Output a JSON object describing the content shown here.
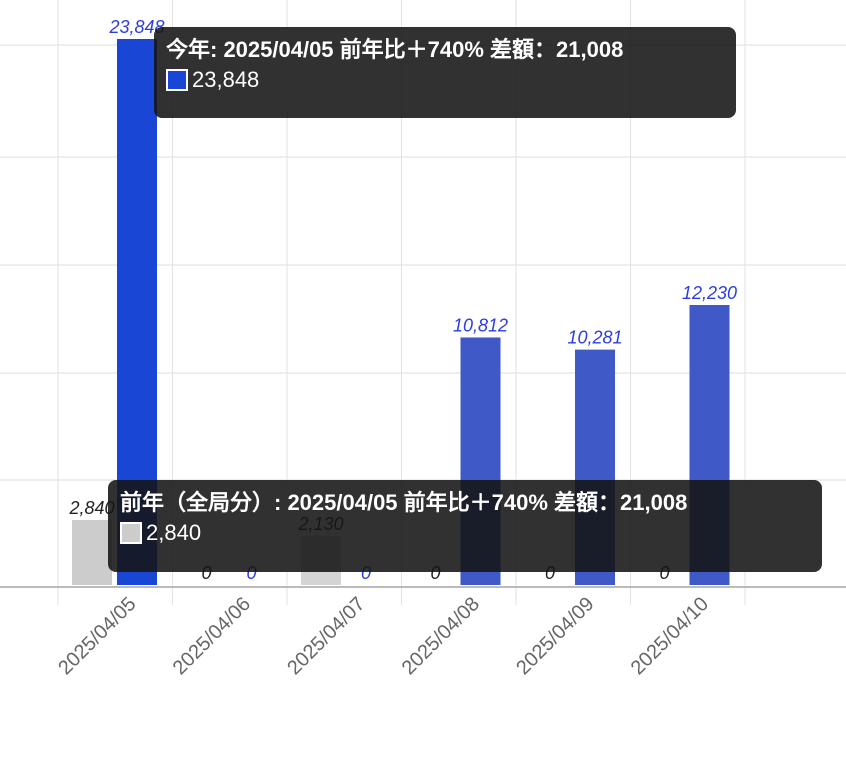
{
  "chart_data": {
    "type": "bar",
    "categories": [
      "2025/04/05",
      "2025/04/06",
      "2025/04/07",
      "2025/04/08",
      "2025/04/09",
      "2025/04/10"
    ],
    "series": [
      {
        "name": "前年（全局分）",
        "values": [
          2840,
          0,
          2130,
          0,
          0,
          0
        ],
        "labels": [
          "2,840",
          "0",
          "2,130",
          "0",
          "0",
          "0"
        ],
        "color": "#cccccc",
        "label_color": "#222222"
      },
      {
        "name": "今年",
        "values": [
          23848,
          0,
          0,
          10812,
          10281,
          12230
        ],
        "labels": [
          "23,848",
          "0",
          "0",
          "10,812",
          "10,281",
          "12,230"
        ],
        "color": "#3f5ac6",
        "highlight_color": "#1a46d6",
        "label_color": "#2b3de0"
      }
    ],
    "ylim": [
      0,
      25000
    ],
    "grid": true,
    "legend": "none"
  },
  "tooltips": {
    "current": {
      "title": "今年:  2025/04/05 前年比＋740% 差額：21,008",
      "value": "23,848",
      "swatch_color": "#1a46d6"
    },
    "previous": {
      "title": "前年（全局分）:  2025/04/05 前年比＋740% 差額：21,008",
      "value": "2,840",
      "swatch_color": "#cccccc"
    }
  }
}
